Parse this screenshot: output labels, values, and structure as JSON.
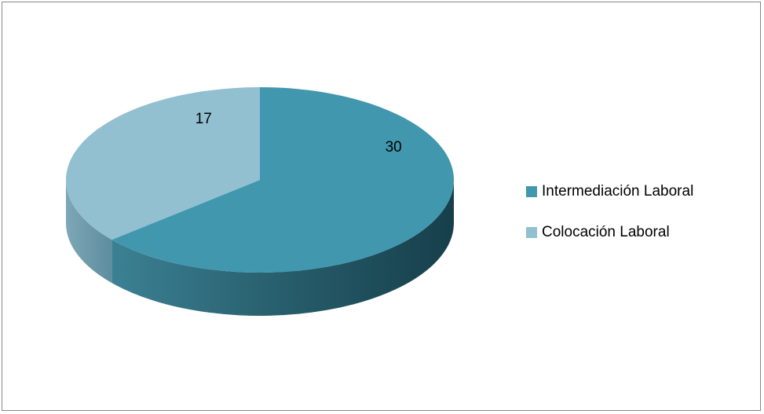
{
  "chart_data": {
    "type": "pie",
    "categories": [
      "Intermediación Laboral",
      "Colocación Laboral"
    ],
    "values": [
      30,
      17
    ],
    "data_labels": [
      "30",
      "17"
    ],
    "colors": {
      "Intermediación Laboral": "#4197ae",
      "Colocación Laboral": "#92c0d1"
    },
    "side_colors": {
      "Intermediación Laboral": "#2a6b7c",
      "Colocación Laboral": "#6f9aab"
    },
    "style": "3d",
    "legend_position": "right",
    "title": ""
  }
}
